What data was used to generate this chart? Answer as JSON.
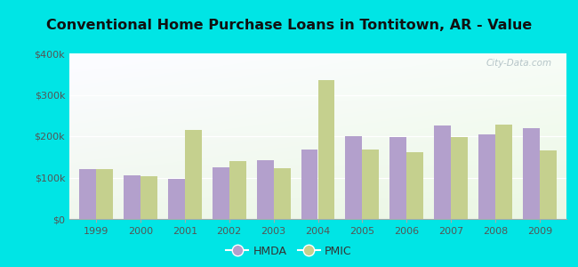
{
  "title": "Conventional Home Purchase Loans in Tontitown, AR - Value",
  "years": [
    1999,
    2000,
    2001,
    2002,
    2003,
    2004,
    2005,
    2006,
    2007,
    2008,
    2009
  ],
  "hmda_values": [
    120000,
    105000,
    97000,
    125000,
    143000,
    168000,
    200000,
    198000,
    225000,
    205000,
    220000
  ],
  "pmic_values": [
    120000,
    103000,
    215000,
    140000,
    123000,
    335000,
    168000,
    162000,
    197000,
    228000,
    165000
  ],
  "hmda_color": "#b3a0cc",
  "pmic_color": "#c5d08e",
  "background_outer": "#00e5e5",
  "ylim": [
    0,
    400000
  ],
  "yticks": [
    0,
    100000,
    200000,
    300000,
    400000
  ],
  "ytick_labels": [
    "$0",
    "$100k",
    "$200k",
    "$300k",
    "$400k"
  ],
  "bar_width": 0.38,
  "legend_labels": [
    "HMDA",
    "PMIC"
  ],
  "title_fontsize": 11.5,
  "watermark": "City-Data.com"
}
